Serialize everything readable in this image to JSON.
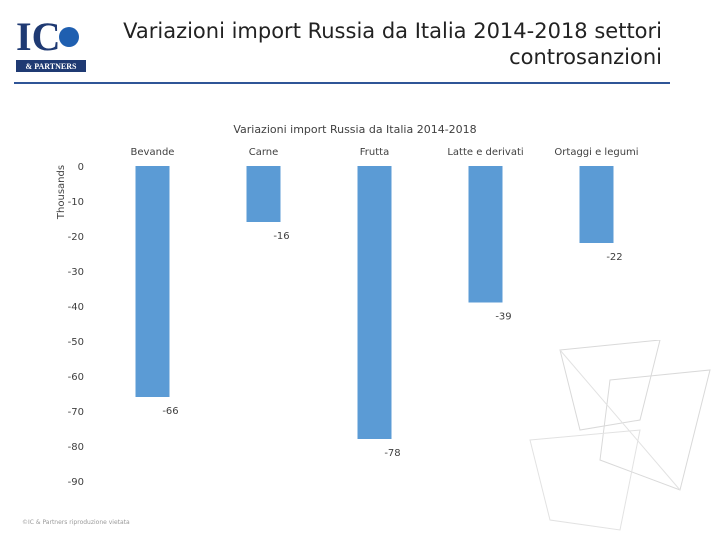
{
  "header": {
    "logo_text": "IC",
    "logo_sub": "& PARTNERS",
    "title": "Variazioni import Russia da Italia 2014-2018 settori controsanzioni"
  },
  "footer": {
    "copyright": "©IC & Partners riproduzione vietata"
  },
  "colors": {
    "bar": "#5b9bd5",
    "rule": "#2f5597",
    "logo_blue": "#1f5fb0",
    "logo_dark": "#1f3a73"
  },
  "chart_data": {
    "type": "bar",
    "title": "Variazioni import Russia da Italia 2014-2018",
    "ylabel": "Thousands",
    "xlabel": "",
    "categories": [
      "Bevande",
      "Carne",
      "Frutta",
      "Latte e derivati",
      "Ortaggi e legumi"
    ],
    "values": [
      -66,
      -16,
      -78,
      -39,
      -22
    ],
    "data_labels": [
      "-66",
      "-16",
      "-78",
      "-39",
      "-22"
    ],
    "yticks": [
      0,
      -10,
      -20,
      -30,
      -40,
      -50,
      -60,
      -70,
      -80,
      -90
    ],
    "ylim": [
      -90,
      0
    ],
    "category_labels_position": "top",
    "grid": false,
    "legend": "none"
  }
}
